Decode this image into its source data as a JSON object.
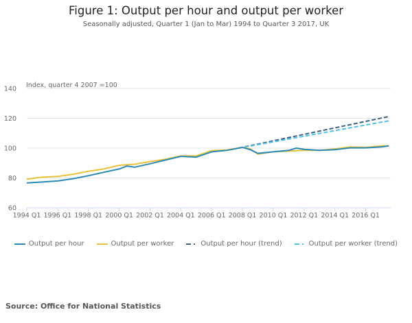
{
  "title": "Figure 1: Output per hour and output per worker",
  "subtitle": "Seasonally adjusted, Quarter 1 (Jan to Mar) 1994 to Quarter 3 2017, UK",
  "source": "Source: Office for National Statistics",
  "chart_data": {
    "type": "line",
    "ylabel": "Index, quarter 4 2007 =100",
    "ylim": [
      60,
      140
    ],
    "yticks": [
      60,
      80,
      100,
      120,
      140
    ],
    "xlim": [
      "1994 Q1",
      "2017 Q3"
    ],
    "xticks": [
      "1994 Q1",
      "1996 Q1",
      "1998 Q1",
      "2000 Q1",
      "2002 Q1",
      "2004 Q1",
      "2006 Q1",
      "2008 Q1",
      "2010 Q1",
      "2012 Q1",
      "2014 Q1",
      "2016 Q1"
    ],
    "grid": true,
    "legend": "bottom",
    "series": [
      {
        "name": "Output per hour",
        "color": "#2a88b5",
        "dash": false,
        "points": [
          [
            "1994 Q1",
            76.7
          ],
          [
            "1995 Q1",
            77.3
          ],
          [
            "1996 Q1",
            78.0
          ],
          [
            "1997 Q1",
            79.5
          ],
          [
            "1998 Q1",
            81.5
          ],
          [
            "1999 Q1",
            83.8
          ],
          [
            "2000 Q1",
            86.0
          ],
          [
            "2000 Q3",
            88.0
          ],
          [
            "2001 Q1",
            87.2
          ],
          [
            "2002 Q1",
            89.5
          ],
          [
            "2003 Q1",
            92.0
          ],
          [
            "2004 Q1",
            94.5
          ],
          [
            "2005 Q1",
            94.0
          ],
          [
            "2006 Q1",
            97.5
          ],
          [
            "2007 Q1",
            98.5
          ],
          [
            "2008 Q1",
            100.5
          ],
          [
            "2008 Q3",
            99.0
          ],
          [
            "2009 Q1",
            96.5
          ],
          [
            "2010 Q1",
            97.5
          ],
          [
            "2011 Q1",
            98.5
          ],
          [
            "2011 Q3",
            100.0
          ],
          [
            "2012 Q1",
            99.2
          ],
          [
            "2013 Q1",
            98.5
          ],
          [
            "2014 Q1",
            99.0
          ],
          [
            "2015 Q1",
            100.2
          ],
          [
            "2016 Q1",
            100.2
          ],
          [
            "2017 Q1",
            100.8
          ],
          [
            "2017 Q3",
            101.5
          ]
        ]
      },
      {
        "name": "Output per worker",
        "color": "#e8c23a",
        "dash": false,
        "points": [
          [
            "1994 Q1",
            79.2
          ],
          [
            "1995 Q1",
            80.5
          ],
          [
            "1996 Q1",
            81.0
          ],
          [
            "1997 Q1",
            82.5
          ],
          [
            "1998 Q1",
            84.5
          ],
          [
            "1999 Q1",
            86.0
          ],
          [
            "2000 Q1",
            88.5
          ],
          [
            "2001 Q1",
            89.2
          ],
          [
            "2002 Q1",
            91.0
          ],
          [
            "2003 Q1",
            92.5
          ],
          [
            "2004 Q1",
            94.8
          ],
          [
            "2005 Q1",
            94.8
          ],
          [
            "2006 Q1",
            98.3
          ],
          [
            "2007 Q1",
            98.8
          ],
          [
            "2008 Q1",
            100.5
          ],
          [
            "2008 Q3",
            99.5
          ],
          [
            "2009 Q1",
            96.0
          ],
          [
            "2010 Q1",
            97.5
          ],
          [
            "2011 Q1",
            98.0
          ],
          [
            "2012 Q1",
            98.5
          ],
          [
            "2013 Q1",
            98.5
          ],
          [
            "2014 Q1",
            99.5
          ],
          [
            "2015 Q1",
            100.8
          ],
          [
            "2016 Q1",
            100.5
          ],
          [
            "2017 Q1",
            101.5
          ],
          [
            "2017 Q3",
            101.5
          ]
        ]
      },
      {
        "name": "Output per hour (trend)",
        "color": "#3d5f80",
        "dash": true,
        "points": [
          [
            "2007 Q4",
            100.0
          ],
          [
            "2017 Q3",
            121.2
          ]
        ]
      },
      {
        "name": "Output per worker (trend)",
        "color": "#4fc0e8",
        "dash": true,
        "points": [
          [
            "2007 Q4",
            100.0
          ],
          [
            "2017 Q3",
            118.3
          ]
        ]
      }
    ]
  }
}
